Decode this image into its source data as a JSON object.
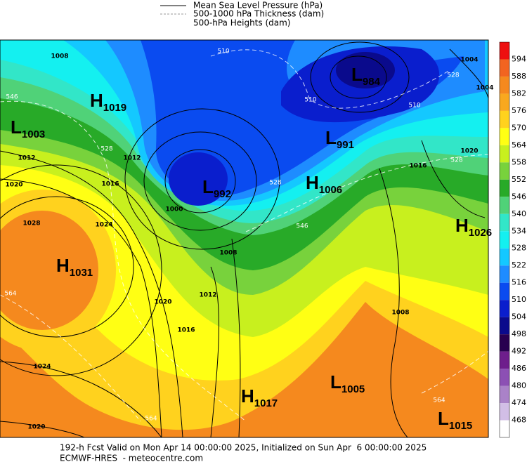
{
  "legend": [
    "Mean Sea Level Pressure (hPa)",
    "500-1000 hPa Thickness (dam)",
    "500-hPa Heights (dam)"
  ],
  "colorbar": {
    "levels": [
      594,
      588,
      582,
      576,
      570,
      564,
      558,
      552,
      546,
      540,
      534,
      528,
      522,
      516,
      510,
      504,
      498,
      492,
      486,
      480,
      474,
      468
    ],
    "colors": [
      "#ee1010",
      "#f26420",
      "#f5891e",
      "#f9a81e",
      "#ffd21e",
      "#ffff14",
      "#c8f01e",
      "#78d23c",
      "#28aa28",
      "#50d278",
      "#32e6c8",
      "#14f0f0",
      "#14c8ff",
      "#1e8cff",
      "#0a4bf0",
      "#0a1ecd",
      "#0a0a8c",
      "#280050",
      "#6e1e8c",
      "#8c50b4",
      "#aa82c8",
      "#d2bee6",
      "#ffffff"
    ]
  },
  "centers": [
    {
      "letter": "H",
      "value": 1019
    },
    {
      "letter": "L",
      "value": 1003
    },
    {
      "letter": "L",
      "value": 992
    },
    {
      "letter": "H",
      "value": 1006
    },
    {
      "letter": "L",
      "value": 991
    },
    {
      "letter": "L",
      "value": 984
    },
    {
      "letter": "H",
      "value": 1026
    },
    {
      "letter": "H",
      "value": 1031
    },
    {
      "letter": "H",
      "value": 1017
    },
    {
      "letter": "L",
      "value": 1005
    },
    {
      "letter": "L",
      "value": 1015
    }
  ],
  "pressure_labels": [
    1008,
    1012,
    1020,
    1028,
    1016,
    1012,
    1024,
    1000,
    1008,
    1020,
    1016,
    1012,
    1024,
    1020,
    1004,
    1004,
    1020,
    1016,
    1008
  ],
  "thickness_labels": [
    546,
    510,
    510,
    510,
    528,
    528,
    528,
    528,
    546,
    564,
    564,
    564
  ],
  "footer": [
    "192-h Fcst Valid on Mon Apr 14 00:00:00 2025, Initialized on Sun Apr  6 00:00:00 2025",
    "ECMWF-HRES  - meteocentre.com"
  ]
}
